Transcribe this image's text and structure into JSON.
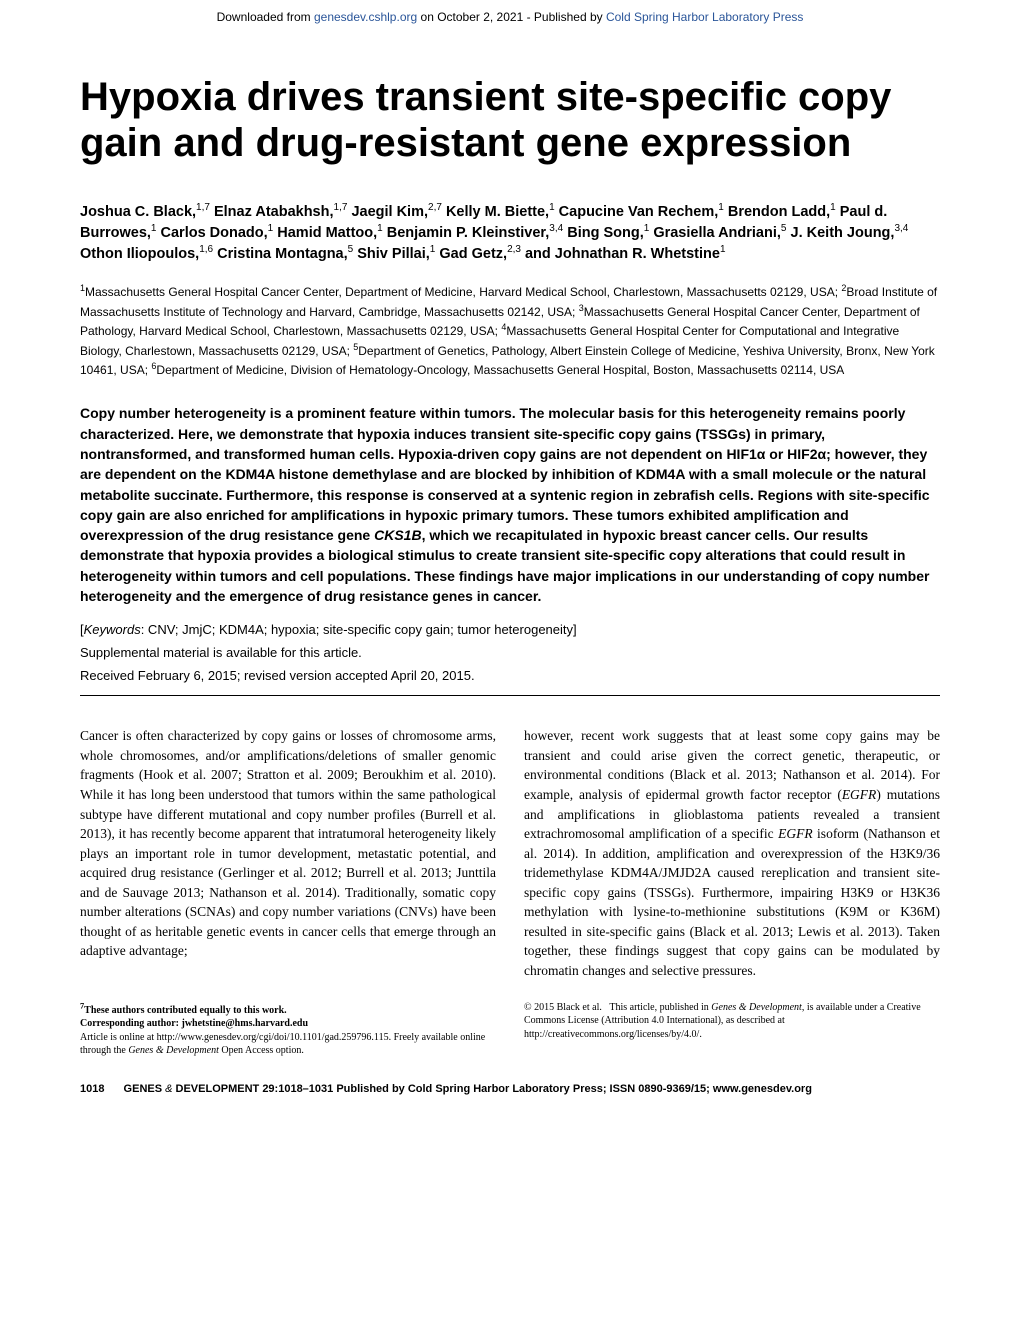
{
  "header": {
    "prefix": "Downloaded from ",
    "link1": "genesdev.cshlp.org",
    "middle": " on October 2, 2021 - Published by ",
    "link2": "Cold Spring Harbor Laboratory Press"
  },
  "title": "Hypoxia drives transient site-specific copy gain and drug-resistant gene expression",
  "authors_html": "Joshua C. Black,<sup>1,7</sup> Elnaz Atabakhsh,<sup>1,7</sup> Jaegil Kim,<sup>2,7</sup> Kelly M. Biette,<sup>1</sup> Capucine Van Rechem,<sup>1</sup> Brendon Ladd,<sup>1</sup> Paul d. Burrowes,<sup>1</sup> Carlos Donado,<sup>1</sup> Hamid Mattoo,<sup>1</sup> Benjamin P. Kleinstiver,<sup>3,4</sup> Bing Song,<sup>1</sup> Grasiella Andriani,<sup>5</sup> J. Keith Joung,<sup>3,4</sup> Othon Iliopoulos,<sup>1,6</sup> Cristina Montagna,<sup>5</sup> Shiv Pillai,<sup>1</sup> Gad Getz,<sup>2,3</sup> and Johnathan R. Whetstine<sup>1</sup>",
  "affiliations_html": "<sup>1</sup>Massachusetts General Hospital Cancer Center, Department of Medicine, Harvard Medical School, Charlestown, Massachusetts 02129, USA; <sup>2</sup>Broad Institute of Massachusetts Institute of Technology and Harvard, Cambridge, Massachusetts 02142, USA; <sup>3</sup>Massachusetts General Hospital Cancer Center, Department of Pathology, Harvard Medical School, Charlestown, Massachusetts 02129, USA; <sup>4</sup>Massachusetts General Hospital Center for Computational and Integrative Biology, Charlestown, Massachusetts 02129, USA; <sup>5</sup>Department of Genetics, Pathology, Albert Einstein College of Medicine, Yeshiva University, Bronx, New York 10461, USA; <sup>6</sup>Department of Medicine, Division of Hematology-Oncology, Massachusetts General Hospital, Boston, Massachusetts 02114, USA",
  "abstract_html": "Copy number heterogeneity is a prominent feature within tumors. The molecular basis for this heterogeneity remains poorly characterized. Here, we demonstrate that hypoxia induces transient site-specific copy gains (TSSGs) in primary, nontransformed, and transformed human cells. Hypoxia-driven copy gains are not dependent on HIF1α or HIF2α; however, they are dependent on the KDM4A histone demethylase and are blocked by inhibition of KDM4A with a small molecule or the natural metabolite succinate. Furthermore, this response is conserved at a syntenic region in zebrafish cells. Regions with site-specific copy gain are also enriched for amplifications in hypoxic primary tumors. These tumors exhibited amplification and overexpression of the drug resistance gene <em>CKS1B</em>, which we recapitulated in hypoxic breast cancer cells. Our results demonstrate that hypoxia provides a biological stimulus to create transient site-specific copy alterations that could result in heterogeneity within tumors and cell populations. These findings have major implications in our understanding of copy number heterogeneity and the emergence of drug resistance genes in cancer.",
  "keywords_label": "Keywords",
  "keywords_text": ":  CNV; JmjC; KDM4A; hypoxia; site-specific copy gain; tumor heterogeneity]",
  "supplemental": "Supplemental material is available for this article.",
  "received": "Received February 6, 2015; revised version accepted April 20, 2015.",
  "body": {
    "left_html": "Cancer is often characterized by copy gains or losses of chromosome arms, whole chromosomes, and/or amplifications/deletions of smaller genomic fragments (Hook et al. 2007; Stratton et al. 2009; Beroukhim et al. 2010). While it has long been understood that tumors within the same pathological subtype have different mutational and copy number profiles (Burrell et al. 2013), it has recently become apparent that intratumoral heterogeneity likely plays an important role in tumor development, metastatic potential, and acquired drug resistance (Gerlinger et al. 2012; Burrell et al. 2013; Junttila and de Sauvage 2013; Nathanson et al. 2014). Traditionally, somatic copy number alterations (SCNAs) and copy number variations (CNVs) have been thought of as heritable genetic events in cancer cells that emerge through an adaptive advantage;",
    "right_html": "however, recent work suggests that at least some copy gains may be transient and could arise given the correct genetic, therapeutic, or environmental conditions (Black et al. 2013; Nathanson et al. 2014). For example, analysis of epidermal growth factor receptor (<em>EGFR</em>) mutations and amplifications in glioblastoma patients revealed a transient extrachromosomal amplification of a specific <em>EGFR</em> isoform (Nathanson et al. 2014). In addition, amplification and overexpression of the H3K9/36 tridemethylase KDM4A/JMJD2A caused rereplication and transient site-specific copy gains (TSSGs). Furthermore, impairing H3K9 or H3K36 methylation with lysine-to-methionine substitutions (K9M or K36M) resulted in site-specific gains (Black et al. 2013; Lewis et al. 2013). Taken together, these findings suggest that copy gains can be modulated by chromatin changes and selective pressures."
  },
  "footnotes": {
    "left_html": "<span class=\"bold\"><sup>7</sup>These authors contributed equally to this work.</span><br><span class=\"bold\">Corresponding author: jwhetstine@hms.harvard.edu</span><br>Article is online at http://www.genesdev.org/cgi/doi/10.1101/gad.259796.115. Freely available online through the <em>Genes &amp; Development</em> Open Access option.",
    "right_html": "© 2015 Black et al.&nbsp;&nbsp;&nbsp;This article, published in <em>Genes &amp; Development</em>, is available under a Creative Commons License (Attribution 4.0 International), as described at http://creativecommons.org/licenses/by/4.0/."
  },
  "footer": {
    "page_num": "1018",
    "journal": "GENES",
    "amp": "&",
    "dev": "DEVELOPMENT 29:1018–1031 Published by Cold Spring Harbor Laboratory Press; ISSN 0890-9369/15; www.genesdev.org"
  }
}
